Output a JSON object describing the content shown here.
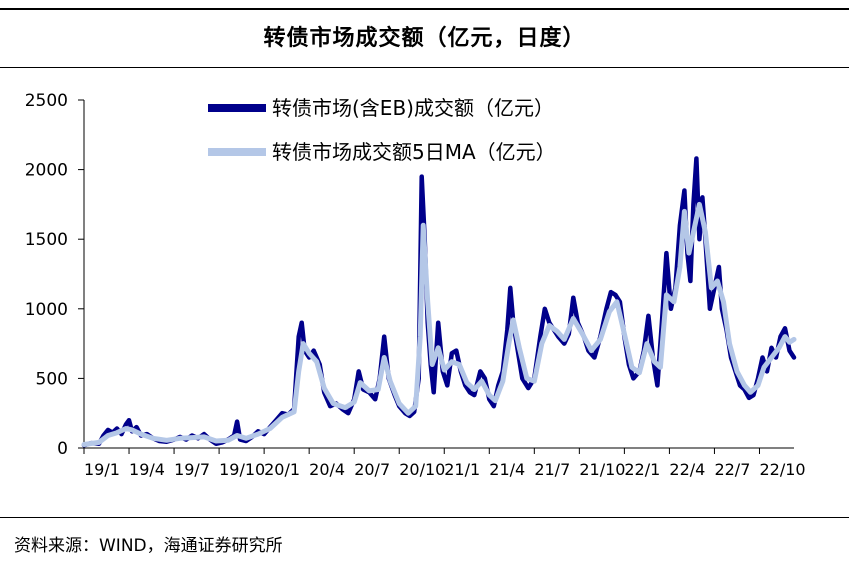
{
  "title": "转债市场成交额（亿元，日度）",
  "source": "资料来源：WIND，海通证券研究所",
  "colors": {
    "main": "#00008b",
    "ma": "#b4c7e7",
    "axis": "#000000"
  },
  "chart_data": {
    "type": "line",
    "title": "转债市场成交额（亿元，日度）",
    "xlabel": "",
    "ylabel": "",
    "ylim": [
      0,
      2500
    ],
    "yticks": [
      0,
      500,
      1000,
      1500,
      2000,
      2500
    ],
    "x_tick_labels": [
      "19/1",
      "19/4",
      "19/7",
      "19/10",
      "20/1",
      "20/4",
      "20/7",
      "20/10",
      "21/1",
      "21/4",
      "21/7",
      "21/10",
      "22/1",
      "22/4",
      "22/7",
      "22/10"
    ],
    "x_tick_index": [
      0,
      3,
      6,
      9,
      12,
      15,
      18,
      21,
      24,
      27,
      30,
      33,
      36,
      39,
      42,
      45
    ],
    "x_max_index": 47.3,
    "grid": false,
    "legend_position": "top",
    "series": [
      {
        "name": "转债市场(含EB)成交额（亿元）",
        "color": "#00008b",
        "points": [
          [
            0,
            20
          ],
          [
            0.5,
            35
          ],
          [
            1,
            30
          ],
          [
            1.3,
            90
          ],
          [
            1.6,
            130
          ],
          [
            1.9,
            110
          ],
          [
            2.2,
            140
          ],
          [
            2.5,
            100
          ],
          [
            2.8,
            170
          ],
          [
            3.0,
            200
          ],
          [
            3.2,
            120
          ],
          [
            3.5,
            150
          ],
          [
            3.8,
            90
          ],
          [
            4.2,
            100
          ],
          [
            4.6,
            70
          ],
          [
            5.0,
            50
          ],
          [
            5.5,
            45
          ],
          [
            6.0,
            60
          ],
          [
            6.4,
            80
          ],
          [
            6.8,
            60
          ],
          [
            7.2,
            90
          ],
          [
            7.6,
            70
          ],
          [
            8.0,
            100
          ],
          [
            8.4,
            60
          ],
          [
            8.8,
            30
          ],
          [
            9.2,
            40
          ],
          [
            9.6,
            60
          ],
          [
            10.0,
            90
          ],
          [
            10.2,
            190
          ],
          [
            10.4,
            60
          ],
          [
            10.8,
            50
          ],
          [
            11.2,
            80
          ],
          [
            11.6,
            120
          ],
          [
            12.0,
            100
          ],
          [
            12.4,
            150
          ],
          [
            12.8,
            200
          ],
          [
            13.2,
            250
          ],
          [
            13.6,
            240
          ],
          [
            14.0,
            280
          ],
          [
            14.3,
            800
          ],
          [
            14.5,
            900
          ],
          [
            14.7,
            700
          ],
          [
            15.0,
            650
          ],
          [
            15.3,
            700
          ],
          [
            15.7,
            600
          ],
          [
            16.0,
            400
          ],
          [
            16.4,
            300
          ],
          [
            16.8,
            320
          ],
          [
            17.2,
            280
          ],
          [
            17.6,
            250
          ],
          [
            18.0,
            350
          ],
          [
            18.3,
            550
          ],
          [
            18.6,
            420
          ],
          [
            19.0,
            400
          ],
          [
            19.4,
            350
          ],
          [
            19.7,
            500
          ],
          [
            20.0,
            800
          ],
          [
            20.3,
            500
          ],
          [
            20.7,
            380
          ],
          [
            21.0,
            300
          ],
          [
            21.4,
            250
          ],
          [
            21.7,
            230
          ],
          [
            22.0,
            260
          ],
          [
            22.3,
            500
          ],
          [
            22.5,
            1950
          ],
          [
            22.7,
            1500
          ],
          [
            22.9,
            900
          ],
          [
            23.1,
            600
          ],
          [
            23.3,
            400
          ],
          [
            23.6,
            900
          ],
          [
            23.9,
            550
          ],
          [
            24.2,
            450
          ],
          [
            24.5,
            680
          ],
          [
            24.8,
            700
          ],
          [
            25.1,
            550
          ],
          [
            25.4,
            450
          ],
          [
            25.7,
            400
          ],
          [
            26.0,
            380
          ],
          [
            26.4,
            550
          ],
          [
            26.7,
            500
          ],
          [
            27.0,
            350
          ],
          [
            27.3,
            300
          ],
          [
            27.6,
            450
          ],
          [
            27.9,
            550
          ],
          [
            28.2,
            850
          ],
          [
            28.4,
            1150
          ],
          [
            28.6,
            900
          ],
          [
            28.9,
            700
          ],
          [
            29.2,
            500
          ],
          [
            29.6,
            430
          ],
          [
            30.0,
            500
          ],
          [
            30.4,
            800
          ],
          [
            30.7,
            1000
          ],
          [
            31.0,
            900
          ],
          [
            31.3,
            850
          ],
          [
            31.6,
            800
          ],
          [
            32.0,
            750
          ],
          [
            32.3,
            820
          ],
          [
            32.6,
            1080
          ],
          [
            32.9,
            900
          ],
          [
            33.3,
            800
          ],
          [
            33.6,
            700
          ],
          [
            34.0,
            650
          ],
          [
            34.4,
            800
          ],
          [
            34.8,
            1000
          ],
          [
            35.1,
            1120
          ],
          [
            35.4,
            1100
          ],
          [
            35.7,
            1050
          ],
          [
            36.0,
            800
          ],
          [
            36.3,
            600
          ],
          [
            36.6,
            500
          ],
          [
            37.0,
            550
          ],
          [
            37.3,
            700
          ],
          [
            37.6,
            950
          ],
          [
            37.9,
            650
          ],
          [
            38.2,
            450
          ],
          [
            38.5,
            900
          ],
          [
            38.8,
            1400
          ],
          [
            39.1,
            1000
          ],
          [
            39.4,
            1150
          ],
          [
            39.7,
            1600
          ],
          [
            40.0,
            1850
          ],
          [
            40.2,
            1400
          ],
          [
            40.4,
            1200
          ],
          [
            40.6,
            1750
          ],
          [
            40.8,
            2080
          ],
          [
            41.0,
            1500
          ],
          [
            41.2,
            1800
          ],
          [
            41.4,
            1500
          ],
          [
            41.7,
            1000
          ],
          [
            42.0,
            1150
          ],
          [
            42.3,
            1300
          ],
          [
            42.5,
            1000
          ],
          [
            42.8,
            850
          ],
          [
            43.1,
            650
          ],
          [
            43.4,
            550
          ],
          [
            43.7,
            450
          ],
          [
            44.0,
            420
          ],
          [
            44.3,
            360
          ],
          [
            44.6,
            380
          ],
          [
            44.9,
            500
          ],
          [
            45.2,
            650
          ],
          [
            45.5,
            550
          ],
          [
            45.8,
            720
          ],
          [
            46.1,
            650
          ],
          [
            46.4,
            800
          ],
          [
            46.7,
            860
          ],
          [
            47.0,
            700
          ],
          [
            47.3,
            650
          ]
        ]
      },
      {
        "name": "转债市场成交额5日MA（亿元）",
        "color": "#b4c7e7",
        "points": [
          [
            0,
            25
          ],
          [
            1,
            40
          ],
          [
            1.6,
            90
          ],
          [
            2.2,
            110
          ],
          [
            2.8,
            140
          ],
          [
            3.2,
            130
          ],
          [
            3.8,
            100
          ],
          [
            4.6,
            70
          ],
          [
            5.5,
            55
          ],
          [
            6.4,
            70
          ],
          [
            7.2,
            75
          ],
          [
            8.0,
            80
          ],
          [
            8.8,
            50
          ],
          [
            9.6,
            55
          ],
          [
            10.2,
            90
          ],
          [
            10.8,
            70
          ],
          [
            11.6,
            100
          ],
          [
            12.4,
            140
          ],
          [
            13.2,
            220
          ],
          [
            14.0,
            260
          ],
          [
            14.3,
            550
          ],
          [
            14.6,
            750
          ],
          [
            15.0,
            680
          ],
          [
            15.5,
            620
          ],
          [
            16.0,
            430
          ],
          [
            16.6,
            320
          ],
          [
            17.4,
            290
          ],
          [
            18.0,
            330
          ],
          [
            18.4,
            470
          ],
          [
            19.0,
            410
          ],
          [
            19.6,
            420
          ],
          [
            20.0,
            650
          ],
          [
            20.4,
            480
          ],
          [
            21.0,
            320
          ],
          [
            21.6,
            250
          ],
          [
            22.1,
            300
          ],
          [
            22.4,
            800
          ],
          [
            22.6,
            1600
          ],
          [
            22.9,
            1050
          ],
          [
            23.2,
            600
          ],
          [
            23.6,
            720
          ],
          [
            24.0,
            560
          ],
          [
            24.5,
            620
          ],
          [
            25.0,
            600
          ],
          [
            25.5,
            470
          ],
          [
            26.0,
            420
          ],
          [
            26.5,
            480
          ],
          [
            27.0,
            380
          ],
          [
            27.4,
            340
          ],
          [
            27.9,
            480
          ],
          [
            28.3,
            750
          ],
          [
            28.6,
            920
          ],
          [
            29.0,
            720
          ],
          [
            29.5,
            500
          ],
          [
            30.0,
            480
          ],
          [
            30.5,
            750
          ],
          [
            31.0,
            880
          ],
          [
            31.5,
            840
          ],
          [
            32.0,
            780
          ],
          [
            32.6,
            930
          ],
          [
            33.2,
            820
          ],
          [
            33.8,
            700
          ],
          [
            34.4,
            780
          ],
          [
            35.0,
            980
          ],
          [
            35.5,
            1050
          ],
          [
            36.0,
            820
          ],
          [
            36.5,
            580
          ],
          [
            37.0,
            540
          ],
          [
            37.5,
            750
          ],
          [
            38.0,
            620
          ],
          [
            38.4,
            580
          ],
          [
            38.8,
            1100
          ],
          [
            39.3,
            1050
          ],
          [
            39.7,
            1300
          ],
          [
            40.0,
            1700
          ],
          [
            40.3,
            1400
          ],
          [
            40.7,
            1600
          ],
          [
            41.0,
            1750
          ],
          [
            41.4,
            1550
          ],
          [
            41.8,
            1150
          ],
          [
            42.2,
            1200
          ],
          [
            42.6,
            1050
          ],
          [
            43.0,
            750
          ],
          [
            43.5,
            550
          ],
          [
            44.0,
            450
          ],
          [
            44.4,
            400
          ],
          [
            44.9,
            450
          ],
          [
            45.3,
            580
          ],
          [
            45.8,
            650
          ],
          [
            46.3,
            720
          ],
          [
            46.7,
            800
          ],
          [
            47.0,
            760
          ],
          [
            47.3,
            780
          ]
        ]
      }
    ]
  }
}
